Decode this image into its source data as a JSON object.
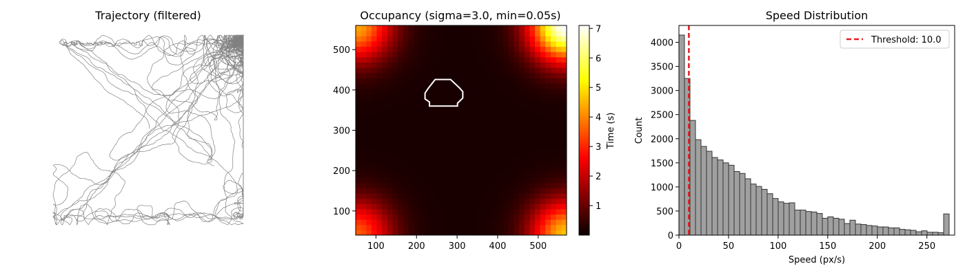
{
  "chart_data": [
    {
      "type": "line",
      "title": "Trajectory (filtered)",
      "axes_visible": false,
      "line_color": "#808080",
      "xlim": [
        50,
        570
      ],
      "ylim": [
        40,
        560
      ],
      "note_data": "dense random-walk trajectory concentrated near the four corners of a square arena"
    },
    {
      "type": "heatmap",
      "title": "Occupancy (sigma=3.0, min=0.05s)",
      "colormap": "hot",
      "xlim": [
        50,
        570
      ],
      "ylim": [
        40,
        560
      ],
      "x_ticks": [
        100,
        200,
        300,
        400,
        500
      ],
      "y_ticks": [
        100,
        200,
        300,
        400,
        500
      ],
      "colorbar": {
        "label": "Time (s)",
        "range": [
          0,
          7.1
        ],
        "ticks": [
          1,
          2,
          3,
          4,
          5,
          6,
          7
        ]
      },
      "corner_peaks": [
        {
          "corner": "top-left",
          "value": 4.2
        },
        {
          "corner": "top-right",
          "value": 7.1
        },
        {
          "corner": "bottom-left",
          "value": 3.4
        },
        {
          "corner": "bottom-right",
          "value": 4.5
        }
      ],
      "contour": {
        "color": "#ffffff",
        "polygon": [
          [
            246,
            426
          ],
          [
            284,
            426
          ],
          [
            305,
            406
          ],
          [
            314,
            396
          ],
          [
            314,
            380
          ],
          [
            301,
            367
          ],
          [
            301,
            360
          ],
          [
            232,
            360
          ],
          [
            232,
            370
          ],
          [
            221,
            378
          ],
          [
            221,
            392
          ],
          [
            229,
            404
          ]
        ]
      }
    },
    {
      "type": "bar",
      "title": "Speed Distribution",
      "xlabel": "Speed (px/s)",
      "ylabel": "Count",
      "xlim": [
        0,
        278
      ],
      "ylim": [
        0,
        4350
      ],
      "x_ticks": [
        0,
        50,
        100,
        150,
        200,
        250
      ],
      "y_ticks": [
        0,
        500,
        1000,
        1500,
        2000,
        2500,
        3000,
        3500,
        4000
      ],
      "bin_width": 5.56,
      "bar_color": "#a0a0a0",
      "edge_color": "#333333",
      "values": [
        4150,
        3250,
        2380,
        1980,
        1840,
        1740,
        1610,
        1560,
        1500,
        1450,
        1320,
        1280,
        1170,
        1060,
        1010,
        950,
        860,
        760,
        690,
        660,
        670,
        520,
        520,
        490,
        480,
        450,
        350,
        380,
        350,
        330,
        240,
        310,
        230,
        220,
        200,
        190,
        170,
        170,
        150,
        150,
        120,
        110,
        100,
        70,
        90,
        60,
        60,
        50,
        440
      ],
      "threshold": {
        "value": 10.0,
        "color": "#e41a1c"
      },
      "legend": {
        "label": "Threshold: 10.0",
        "placement": "top-right"
      }
    }
  ]
}
